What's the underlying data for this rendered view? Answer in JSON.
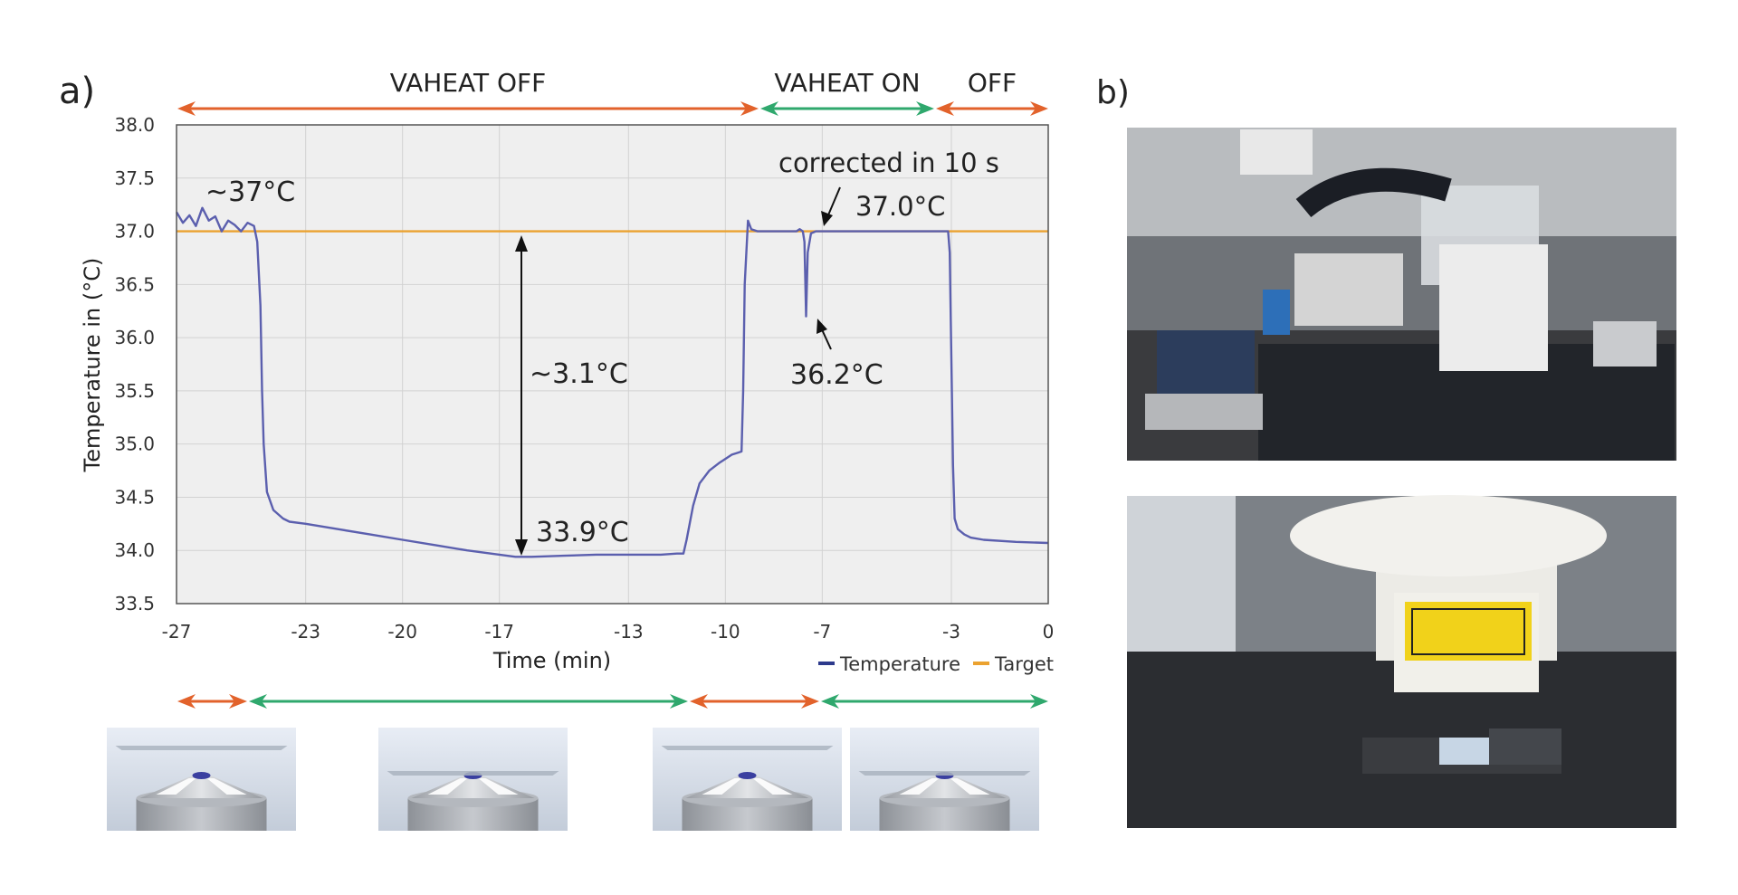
{
  "panel_a_label": "a)",
  "panel_b_label": "b)",
  "phases_top": [
    {
      "label": "VAHEAT OFF",
      "color": "#e2622b"
    },
    {
      "label": "VAHEAT ON",
      "color": "#2fa86d"
    },
    {
      "label": "OFF",
      "color": "#e2622b"
    }
  ],
  "phases_bottom": [
    {
      "color": "#e2622b"
    },
    {
      "color": "#2fa86d"
    },
    {
      "color": "#e2622b"
    },
    {
      "color": "#2fa86d"
    }
  ],
  "colors": {
    "temperature": "#5b5fae",
    "target": "#eba230",
    "plot_bg": "#efefef",
    "grid": "#d2d2d2"
  },
  "annotations": {
    "start": "~37°C",
    "corrected": "corrected in 10 s",
    "recovered": "37.0°C",
    "diff": "~3.1°C",
    "minimum": "33.9°C",
    "dip": "36.2°C"
  },
  "chart_data": {
    "type": "line",
    "title": "",
    "xlabel": "Time (min)",
    "ylabel": "Temperature in (°C)",
    "xlim": [
      -27,
      0
    ],
    "ylim": [
      33.5,
      38.0
    ],
    "x_ticks": [
      -27,
      -23,
      -20,
      -17,
      -13,
      -10,
      -7,
      -3,
      0
    ],
    "y_ticks": [
      "33.5",
      "34.0",
      "34.5",
      "35.0",
      "35.5",
      "36.0",
      "36.5",
      "37.0",
      "37.5",
      "38.0"
    ],
    "grid": true,
    "legend_position": "bottom-right",
    "series": [
      {
        "name": "Temperature",
        "color": "#5b5fae",
        "x": [
          -27.0,
          -26.8,
          -26.6,
          -26.4,
          -26.2,
          -26.0,
          -25.8,
          -25.6,
          -25.4,
          -25.2,
          -25.0,
          -24.8,
          -24.6,
          -24.5,
          -24.4,
          -24.35,
          -24.3,
          -24.2,
          -24.0,
          -23.7,
          -23.5,
          -23.0,
          -22.0,
          -21.0,
          -20.0,
          -19.0,
          -18.0,
          -17.0,
          -16.5,
          -16.0,
          -15.0,
          -14.0,
          -13.0,
          -12.0,
          -11.5,
          -11.3,
          -11.2,
          -11.0,
          -10.8,
          -10.5,
          -10.2,
          -10.0,
          -9.8,
          -9.6,
          -9.5,
          -9.45,
          -9.4,
          -9.3,
          -9.2,
          -9.0,
          -8.5,
          -8.0,
          -7.8,
          -7.7,
          -7.6,
          -7.55,
          -7.5,
          -7.45,
          -7.35,
          -7.2,
          -7.0,
          -6.0,
          -5.0,
          -4.0,
          -3.5,
          -3.1,
          -3.05,
          -3.0,
          -2.95,
          -2.9,
          -2.8,
          -2.6,
          -2.4,
          -2.0,
          -1.0,
          0.0
        ],
        "y": [
          37.18,
          37.08,
          37.15,
          37.05,
          37.22,
          37.1,
          37.14,
          37.0,
          37.1,
          37.06,
          37.0,
          37.08,
          37.05,
          36.9,
          36.3,
          35.5,
          35.0,
          34.55,
          34.38,
          34.3,
          34.27,
          34.25,
          34.2,
          34.15,
          34.1,
          34.05,
          34.0,
          33.96,
          33.94,
          33.94,
          33.95,
          33.96,
          33.96,
          33.96,
          33.97,
          33.97,
          34.1,
          34.42,
          34.63,
          34.75,
          34.82,
          34.86,
          34.9,
          34.92,
          34.93,
          35.5,
          36.5,
          37.1,
          37.02,
          37.0,
          37.0,
          37.0,
          37.0,
          37.02,
          37.0,
          36.9,
          36.2,
          36.8,
          36.98,
          37.0,
          37.0,
          37.0,
          37.0,
          37.0,
          37.0,
          37.0,
          36.8,
          35.8,
          34.8,
          34.3,
          34.2,
          34.15,
          34.12,
          34.1,
          34.08,
          34.07
        ]
      },
      {
        "name": "Target",
        "color": "#eba230",
        "x": [
          -27,
          0
        ],
        "y": [
          37.0,
          37.0
        ]
      }
    ]
  }
}
